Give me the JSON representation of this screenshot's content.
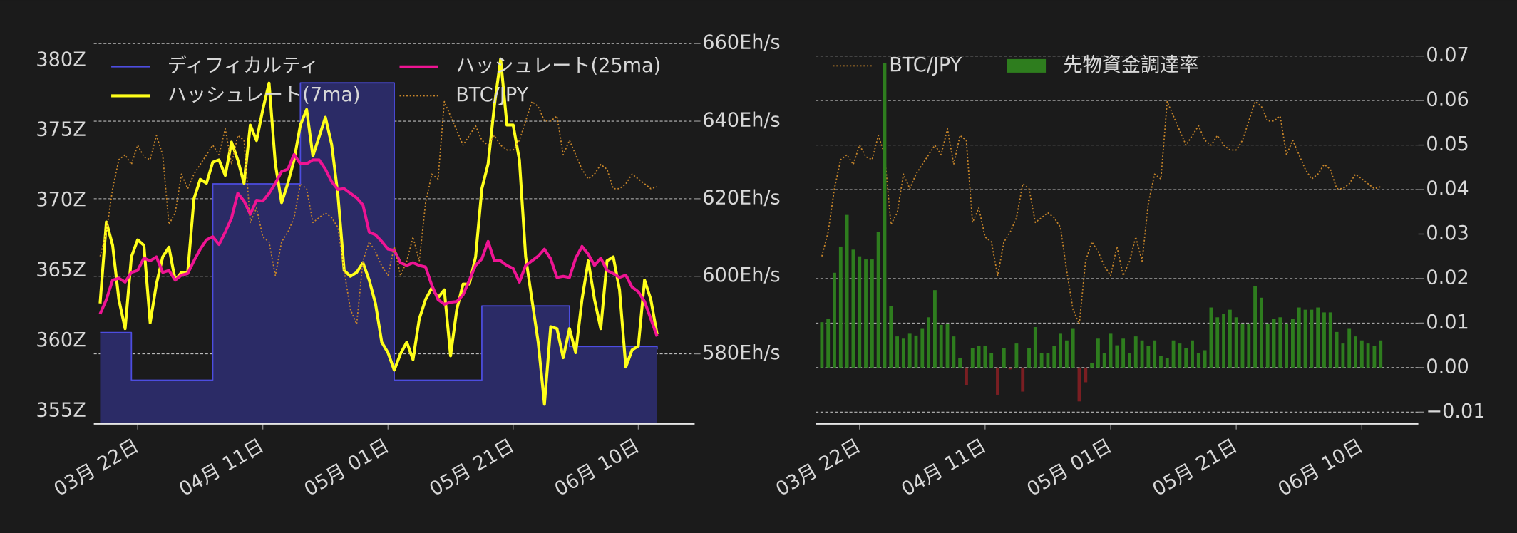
{
  "chart_data": [
    {
      "type": "line",
      "x": [
        "03-16",
        "03-17",
        "03-18",
        "03-19",
        "03-20",
        "03-21",
        "03-22",
        "03-23",
        "03-24",
        "03-25",
        "03-26",
        "03-27",
        "03-28",
        "03-29",
        "03-30",
        "03-31",
        "04-01",
        "04-02",
        "04-03",
        "04-04",
        "04-05",
        "04-06",
        "04-07",
        "04-08",
        "04-09",
        "04-10",
        "04-11",
        "04-12",
        "04-13",
        "04-14",
        "04-15",
        "04-16",
        "04-17",
        "04-18",
        "04-19",
        "04-20",
        "04-21",
        "04-22",
        "04-23",
        "04-24",
        "04-25",
        "04-26",
        "04-27",
        "04-28",
        "04-29",
        "04-30",
        "05-01",
        "05-02",
        "05-03",
        "05-04",
        "05-05",
        "05-06",
        "05-07",
        "05-08",
        "05-09",
        "05-10",
        "05-11",
        "05-12",
        "05-13",
        "05-14",
        "05-15",
        "05-16",
        "05-17",
        "05-18",
        "05-19",
        "05-20",
        "05-21",
        "05-22",
        "05-23",
        "05-24",
        "05-25",
        "05-26",
        "05-27",
        "05-28",
        "05-29",
        "05-30",
        "05-31",
        "06-01",
        "06-02",
        "06-03",
        "06-04",
        "06-05",
        "06-06",
        "06-07",
        "06-08",
        "06-09",
        "06-10",
        "06-11",
        "06-12",
        "06-13"
      ],
      "xlim": [
        "03-15",
        "06-19"
      ],
      "xticks": [
        {
          "value": "03-22",
          "label": "03月 22日"
        },
        {
          "value": "04-11",
          "label": "04月 11日"
        },
        {
          "value": "05-01",
          "label": "05月 01日"
        },
        {
          "value": "05-21",
          "label": "05月 21日"
        },
        {
          "value": "06-10",
          "label": "06月 10日"
        }
      ],
      "ylim": [
        354.1,
        381.2
      ],
      "yticks": [
        {
          "value": 355,
          "label": "355Z"
        },
        {
          "value": 360,
          "label": "360Z"
        },
        {
          "value": 365,
          "label": "365Z"
        },
        {
          "value": 370,
          "label": "370Z"
        },
        {
          "value": 375,
          "label": "375Z"
        },
        {
          "value": 380,
          "label": "380Z"
        }
      ],
      "y2lim": [
        562,
        660
      ],
      "y2ticks": [
        {
          "value": 580,
          "label": "580Eh/s"
        },
        {
          "value": 600,
          "label": "600Eh/s"
        },
        {
          "value": 620,
          "label": "620Eh/s"
        },
        {
          "value": 640,
          "label": "640Eh/s"
        },
        {
          "value": 660,
          "label": "660Eh/s"
        }
      ],
      "y3lim": [
        9035000,
        11000000
      ],
      "grid": true,
      "series": [
        {
          "name": "ディフィカルティ",
          "color": "#4d4de0",
          "fill": "#2b2b66",
          "step": true,
          "axis": "y",
          "values": [
            360.6,
            360.6,
            360.6,
            360.6,
            360.6,
            357.2,
            357.2,
            357.2,
            357.2,
            357.2,
            357.2,
            357.2,
            357.2,
            357.2,
            357.2,
            357.2,
            357.2,
            357.2,
            371.2,
            371.2,
            371.2,
            371.2,
            371.2,
            371.2,
            371.2,
            371.2,
            371.2,
            371.2,
            371.2,
            371.2,
            371.2,
            371.2,
            378.4,
            378.4,
            378.4,
            378.4,
            378.4,
            378.4,
            378.4,
            378.4,
            378.4,
            378.4,
            378.4,
            378.4,
            378.4,
            378.4,
            378.4,
            357.2,
            357.2,
            357.2,
            357.2,
            357.2,
            357.2,
            357.2,
            357.2,
            357.2,
            357.2,
            357.2,
            357.2,
            357.2,
            357.2,
            362.5,
            362.5,
            362.5,
            362.5,
            362.5,
            362.5,
            362.5,
            362.5,
            362.5,
            362.5,
            362.5,
            362.5,
            362.5,
            362.5,
            359.6,
            359.6,
            359.6,
            359.6,
            359.6,
            359.6,
            359.6,
            359.6,
            359.6,
            359.6,
            359.6,
            359.6,
            359.6,
            359.6,
            359.4
          ]
        },
        {
          "name": "ハッシュレート(7ma)",
          "color": "#ffff1a",
          "width": 3,
          "axis": "y2",
          "values": [
            593,
            614,
            608,
            594,
            586.5,
            605,
            609.4,
            608,
            588,
            598,
            605,
            607.5,
            599,
            601,
            601,
            620,
            625,
            624,
            629.4,
            630,
            626,
            634.6,
            630,
            624,
            639,
            635,
            643,
            649.8,
            629,
            619,
            624,
            630,
            639,
            643,
            631,
            636,
            641,
            634,
            621,
            601.5,
            600,
            601,
            603.5,
            599,
            593,
            583,
            580.3,
            575.8,
            580,
            583,
            578.5,
            589,
            594,
            597,
            594.5,
            596.5,
            579.5,
            591.5,
            598,
            598,
            605,
            622.6,
            629,
            644,
            656,
            639,
            639,
            630,
            605,
            594,
            583,
            567,
            587,
            586.5,
            579,
            586.5,
            580.3,
            594,
            604,
            594,
            586.5,
            604,
            605,
            596.5,
            576.6,
            581,
            582,
            599,
            594,
            585
          ]
        },
        {
          "name": "ハッシュレート(25ma)",
          "color": "#ee1493",
          "width": 3,
          "axis": "y2",
          "values": [
            590.3,
            594,
            599,
            599.5,
            598.5,
            601,
            601.5,
            604.7,
            604,
            605,
            601,
            601.5,
            599,
            600.3,
            600.7,
            604,
            607,
            609.4,
            610.2,
            608.2,
            611.4,
            615,
            621.4,
            619.4,
            616,
            619.6,
            619.4,
            621.4,
            624,
            627,
            627.6,
            631.4,
            629,
            629,
            630,
            630,
            627.6,
            624.4,
            622.4,
            622.6,
            621.4,
            620.2,
            618.4,
            611.4,
            610.7,
            609,
            607,
            606.7,
            603.5,
            602.8,
            603.5,
            602.8,
            602.4,
            597.7,
            594,
            592.8,
            593.3,
            593.5,
            595.2,
            599,
            602.8,
            604.5,
            609,
            604,
            604,
            602.8,
            602,
            598.5,
            602.8,
            604,
            605.2,
            607,
            604.5,
            599.7,
            600,
            599.7,
            604.7,
            607.7,
            605.7,
            602.8,
            604.7,
            601.5,
            600.7,
            599.7,
            600.3,
            597.2,
            596,
            593.5,
            589,
            584.5
          ]
        },
        {
          "name": "BTC/JPY",
          "color": "#c8862a",
          "width": 1.3,
          "line_style": "dotted",
          "axis": "y3",
          "values": [
            9900000,
            10025000,
            10250000,
            10400000,
            10425000,
            10375000,
            10475000,
            10415000,
            10400000,
            10525000,
            10425000,
            10065000,
            10125000,
            10325000,
            10250000,
            10325000,
            10375000,
            10425000,
            10475000,
            10425000,
            10560000,
            10375000,
            10525000,
            10500000,
            10075000,
            10150000,
            10000000,
            9975000,
            9800000,
            9975000,
            10025000,
            10100000,
            10275000,
            10250000,
            10075000,
            10100000,
            10125000,
            10100000,
            10050000,
            9825000,
            9625000,
            9550000,
            9875000,
            9975000,
            9925000,
            9850000,
            9800000,
            9950000,
            9800000,
            9875000,
            10000000,
            9875000,
            10175000,
            10325000,
            10300000,
            10700000,
            10625000,
            10550000,
            10475000,
            10525000,
            10575000,
            10500000,
            10475000,
            10525000,
            10475000,
            10450000,
            10450000,
            10500000,
            10600000,
            10700000,
            10675000,
            10600000,
            10600000,
            10625000,
            10425000,
            10500000,
            10425000,
            10350000,
            10300000,
            10325000,
            10375000,
            10350000,
            10250000,
            10250000,
            10275000,
            10325000,
            10300000,
            10275000,
            10250000,
            10260000
          ]
        }
      ]
    },
    {
      "type": "bar",
      "x": [
        "03-16",
        "03-17",
        "03-18",
        "03-19",
        "03-20",
        "03-21",
        "03-22",
        "03-23",
        "03-24",
        "03-25",
        "03-26",
        "03-27",
        "03-28",
        "03-29",
        "03-30",
        "03-31",
        "04-01",
        "04-02",
        "04-03",
        "04-04",
        "04-05",
        "04-06",
        "04-07",
        "04-08",
        "04-09",
        "04-10",
        "04-11",
        "04-12",
        "04-13",
        "04-14",
        "04-15",
        "04-16",
        "04-17",
        "04-18",
        "04-19",
        "04-20",
        "04-21",
        "04-22",
        "04-23",
        "04-24",
        "04-25",
        "04-26",
        "04-27",
        "04-28",
        "04-29",
        "04-30",
        "05-01",
        "05-02",
        "05-03",
        "05-04",
        "05-05",
        "05-06",
        "05-07",
        "05-08",
        "05-09",
        "05-10",
        "05-11",
        "05-12",
        "05-13",
        "05-14",
        "05-15",
        "05-16",
        "05-17",
        "05-18",
        "05-19",
        "05-20",
        "05-21",
        "05-22",
        "05-23",
        "05-24",
        "05-25",
        "05-26",
        "05-27",
        "05-28",
        "05-29",
        "05-30",
        "05-31",
        "06-01",
        "06-02",
        "06-03",
        "06-04",
        "06-05",
        "06-06",
        "06-07",
        "06-08",
        "06-09",
        "06-10",
        "06-11",
        "06-12",
        "06-13"
      ],
      "xlim": [
        "03-15",
        "06-19"
      ],
      "xticks": [
        {
          "value": "03-22",
          "label": "03月 22日"
        },
        {
          "value": "04-11",
          "label": "04月 11日"
        },
        {
          "value": "05-01",
          "label": "05月 01日"
        },
        {
          "value": "05-21",
          "label": "05月 21日"
        },
        {
          "value": "06-10",
          "label": "06月 10日"
        }
      ],
      "y2lim": [
        -0.0126,
        0.0728
      ],
      "y2ticks": [
        {
          "value": -0.01,
          "label": "−0.01"
        },
        {
          "value": 0,
          "label": "0.00"
        },
        0.01,
        0.02,
        0.03,
        0.04,
        0.05,
        0.06,
        0.07
      ],
      "y3lim": [
        9035000,
        11000000
      ],
      "grid": true,
      "series": [
        {
          "name": "BTC/JPY",
          "type": "line",
          "color": "#c8862a",
          "width": 1.3,
          "line_style": "dotted",
          "axis": "y3",
          "values": [
            9900000,
            10025000,
            10250000,
            10400000,
            10425000,
            10375000,
            10475000,
            10415000,
            10400000,
            10525000,
            10425000,
            10065000,
            10125000,
            10325000,
            10250000,
            10325000,
            10375000,
            10425000,
            10475000,
            10425000,
            10560000,
            10375000,
            10525000,
            10500000,
            10075000,
            10150000,
            10000000,
            9975000,
            9800000,
            9975000,
            10025000,
            10100000,
            10275000,
            10250000,
            10075000,
            10100000,
            10125000,
            10100000,
            10050000,
            9825000,
            9625000,
            9550000,
            9875000,
            9975000,
            9925000,
            9850000,
            9800000,
            9950000,
            9800000,
            9875000,
            10000000,
            9875000,
            10175000,
            10325000,
            10300000,
            10700000,
            10625000,
            10550000,
            10475000,
            10525000,
            10575000,
            10500000,
            10475000,
            10525000,
            10475000,
            10450000,
            10450000,
            10500000,
            10600000,
            10700000,
            10675000,
            10600000,
            10600000,
            10625000,
            10425000,
            10500000,
            10425000,
            10350000,
            10300000,
            10325000,
            10375000,
            10350000,
            10250000,
            10250000,
            10275000,
            10325000,
            10300000,
            10275000,
            10250000,
            10260000
          ]
        },
        {
          "name": "先物資金調達率",
          "type": "bar",
          "color": "#2e7d1e",
          "negative_color": "#7a1e22",
          "axis": "y2",
          "values": [
            0.0102,
            0.0109,
            0.0213,
            0.0272,
            0.0343,
            0.0265,
            0.025,
            0.0243,
            0.0243,
            0.0304,
            0.0685,
            0.0139,
            0.007,
            0.0065,
            0.0076,
            0.0072,
            0.0087,
            0.0113,
            0.0174,
            0.0096,
            0.0098,
            0.007,
            0.0022,
            -0.0039,
            0.0043,
            0.0048,
            0.0048,
            0.0033,
            -0.0061,
            0.0043,
            -0.0004,
            0.0054,
            -0.0054,
            0.0043,
            0.0091,
            0.0033,
            0.0033,
            0.0048,
            0.0076,
            0.0061,
            0.0087,
            -0.0076,
            -0.0033,
            0.0011,
            0.0065,
            0.0033,
            0.0076,
            0.005,
            0.0065,
            0.0033,
            0.007,
            0.0061,
            0.0048,
            0.0061,
            0.0026,
            0.0022,
            0.0061,
            0.0054,
            0.0043,
            0.0061,
            0.0033,
            0.0039,
            0.0135,
            0.0113,
            0.012,
            0.013,
            0.0113,
            0.0098,
            0.0098,
            0.0183,
            0.0157,
            0.0098,
            0.0109,
            0.0113,
            0.0098,
            0.0109,
            0.0135,
            0.013,
            0.013,
            0.0135,
            0.0124,
            0.0124,
            0.008,
            0.0054,
            0.0087,
            0.007,
            0.0061,
            0.0054,
            0.0048,
            0.0061
          ]
        }
      ]
    }
  ]
}
